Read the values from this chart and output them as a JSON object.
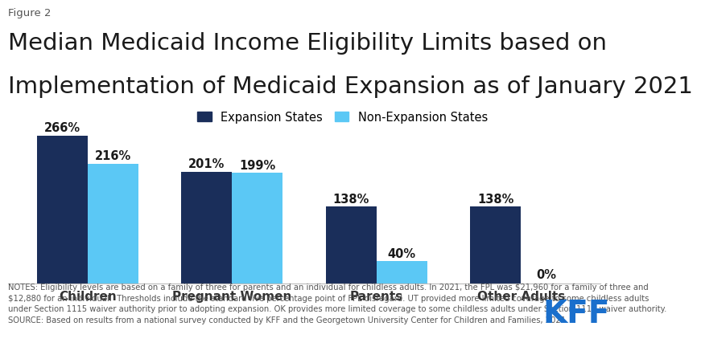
{
  "figure_label": "Figure 2",
  "title_line1": "Median Medicaid Income Eligibility Limits based on",
  "title_line2": "Implementation of Medicaid Expansion as of January 2021",
  "categories": [
    "Children",
    "Pregnant Women",
    "Parents",
    "Other Adults"
  ],
  "expansion_values": [
    266,
    201,
    138,
    138
  ],
  "nonexpansion_values": [
    216,
    199,
    40,
    0
  ],
  "expansion_labels": [
    "266%",
    "201%",
    "138%",
    "138%"
  ],
  "nonexpansion_labels": [
    "216%",
    "199%",
    "40%",
    "0%"
  ],
  "expansion_color": "#1a2e5a",
  "nonexpansion_color": "#5bc8f5",
  "legend_expansion": "Expansion States",
  "legend_nonexpansion": "Non-Expansion States",
  "bar_width": 0.35,
  "ylim": [
    0,
    300
  ],
  "notes_text": "NOTES: Eligibility levels are based on a family of three for parents and an individual for childless adults. In 2021, the FPL was $21,960 for a family of three and\n$12,880 for an individual.  Thresholds include the standard five percentage point of FPL disregard. UT provided more limited coverage to some childless adults\nunder Section 1115 waiver authority prior to adopting expansion. OK provides more limited coverage to some childless adults under Section 1115 waiver authority.\nSOURCE: Based on results from a national survey conducted by KFF and the Georgetown University Center for Children and Families, 2021.",
  "background_color": "#ffffff",
  "title_fontsize": 21,
  "label_fontsize": 10.5,
  "tick_fontsize": 11,
  "note_fontsize": 7.2,
  "figure_label_fontsize": 9.5,
  "kff_color": "#1a6fcc",
  "text_color": "#333333",
  "note_color": "#555555"
}
